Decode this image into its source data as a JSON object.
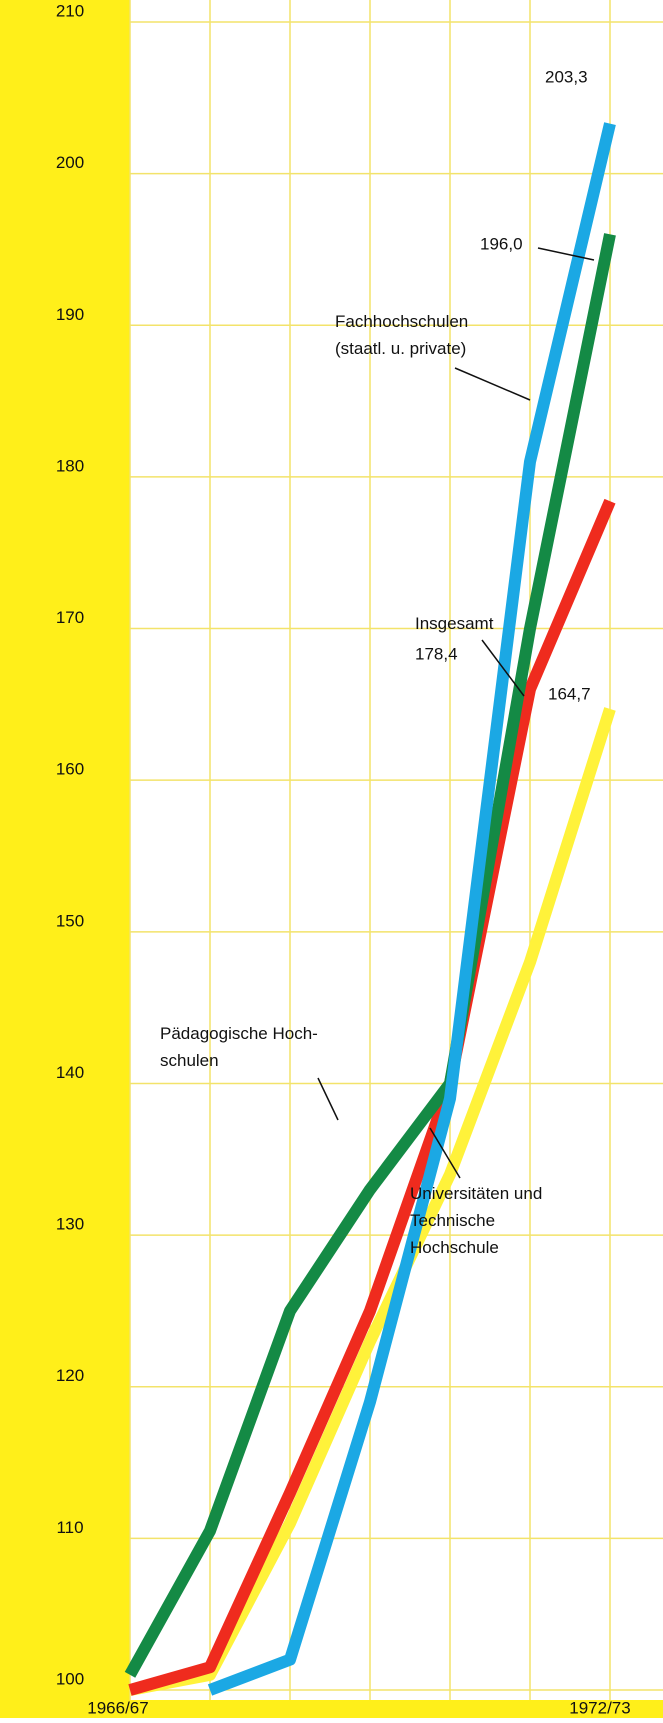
{
  "chart_data": {
    "type": "line",
    "categories": [
      "1966/67",
      null,
      null,
      null,
      null,
      null,
      "1972/73"
    ],
    "series": [
      {
        "name": "Universitäten und\nTechnische\nHochschule",
        "color": "#fff23a",
        "values": [
          100,
          101,
          111,
          123,
          134,
          148,
          164.7
        ],
        "value_labels": [
          null,
          null,
          null,
          null,
          null,
          null,
          "164,7"
        ]
      },
      {
        "name": "Insgesamt",
        "color": "#ef2b1e",
        "values": [
          100,
          101.5,
          113,
          125,
          140,
          166,
          178.4
        ],
        "value_labels": [
          null,
          null,
          null,
          null,
          null,
          null,
          "178,4"
        ]
      },
      {
        "name": "Pädagogische Hoch-\nschulen",
        "color": "#148a45",
        "values": [
          101,
          110.5,
          125,
          133,
          140,
          170,
          196.0
        ],
        "value_labels": [
          null,
          null,
          null,
          null,
          null,
          null,
          "196,0"
        ]
      },
      {
        "name": "Fachhochschulen\n(staatl. u. private)",
        "color": "#1ba8e4",
        "values": [
          null,
          100,
          102,
          119,
          139,
          181,
          203.3
        ],
        "value_labels": [
          null,
          null,
          null,
          null,
          null,
          null,
          "203,3"
        ]
      }
    ],
    "ylim": [
      100,
      210
    ],
    "yticks": [
      100,
      110,
      120,
      130,
      140,
      150,
      160,
      170,
      180,
      190,
      200,
      210
    ],
    "grid": true
  }
}
